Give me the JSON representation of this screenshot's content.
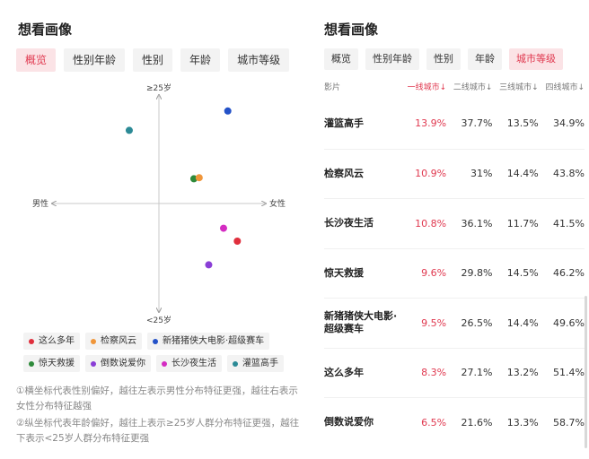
{
  "left": {
    "title": "想看画像",
    "tabs": [
      {
        "label": "概览",
        "active": true
      },
      {
        "label": "性别年龄",
        "active": false
      },
      {
        "label": "性别",
        "active": false
      },
      {
        "label": "年龄",
        "active": false
      },
      {
        "label": "城市等级",
        "active": false
      }
    ],
    "axes": {
      "top": "≥25岁",
      "bottom": "<25岁",
      "left": "男性",
      "right": "女性"
    },
    "legend": [
      {
        "name": "这么多年",
        "color": "#e02f3d"
      },
      {
        "name": "检察风云",
        "color": "#f0963a"
      },
      {
        "name": "新猪猪侠大电影·超级赛车",
        "color": "#2452c8"
      },
      {
        "name": "惊天救援",
        "color": "#2e8a3a"
      },
      {
        "name": "倒数说爱你",
        "color": "#8a3ed6"
      },
      {
        "name": "长沙夜生活",
        "color": "#d42cc2"
      },
      {
        "name": "灌篮高手",
        "color": "#2c8a96"
      }
    ],
    "notes": [
      "①横坐标代表性别偏好，越往左表示男性分布特征更强，越往右表示女性分布特征越强",
      "②纵坐标代表年龄偏好，越往上表示≥25岁人群分布特征更强，越往下表示<25岁人群分布特征更强"
    ]
  },
  "chart_data": {
    "type": "scatter",
    "title": "",
    "xlabel": "",
    "ylabel": "",
    "xlim": [
      -1,
      1
    ],
    "ylim": [
      -1,
      1
    ],
    "grid": false,
    "legend_position": "bottom",
    "points": [
      {
        "name": "灌篮高手",
        "x": -0.28,
        "y": 0.68,
        "color": "#2c8a96"
      },
      {
        "name": "新猪猪侠大电影·超级赛车",
        "x": 0.65,
        "y": 0.86,
        "color": "#2452c8"
      },
      {
        "name": "惊天救援",
        "x": 0.33,
        "y": 0.23,
        "color": "#2e8a3a"
      },
      {
        "name": "检察风云",
        "x": 0.38,
        "y": 0.24,
        "color": "#f0963a"
      },
      {
        "name": "长沙夜生活",
        "x": 0.61,
        "y": -0.23,
        "color": "#d42cc2"
      },
      {
        "name": "这么多年",
        "x": 0.74,
        "y": -0.35,
        "color": "#e02f3d"
      },
      {
        "name": "倒数说爱你",
        "x": 0.47,
        "y": -0.57,
        "color": "#8a3ed6"
      }
    ]
  },
  "right": {
    "title": "想看画像",
    "tabs": [
      {
        "label": "概览",
        "active": false
      },
      {
        "label": "性别年龄",
        "active": false
      },
      {
        "label": "性别",
        "active": false
      },
      {
        "label": "年龄",
        "active": false
      },
      {
        "label": "城市等级",
        "active": true
      }
    ],
    "table": {
      "headers": [
        "影片",
        "一线城市↓",
        "二线城市↓",
        "三线城市↓",
        "四线城市↓"
      ],
      "rows": [
        {
          "film": "灌篮高手",
          "c1": "13.9%",
          "c2": "37.7%",
          "c3": "13.5%",
          "c4": "34.9%"
        },
        {
          "film": "检察风云",
          "c1": "10.9%",
          "c2": "31%",
          "c3": "14.4%",
          "c4": "43.8%"
        },
        {
          "film": "长沙夜生活",
          "c1": "10.8%",
          "c2": "36.1%",
          "c3": "11.7%",
          "c4": "41.5%"
        },
        {
          "film": "惊天救援",
          "c1": "9.6%",
          "c2": "29.8%",
          "c3": "14.5%",
          "c4": "46.2%"
        },
        {
          "film": "新猪猪侠大电影·超级赛车",
          "c1": "9.5%",
          "c2": "26.5%",
          "c3": "14.4%",
          "c4": "49.6%"
        },
        {
          "film": "这么多年",
          "c1": "8.3%",
          "c2": "27.1%",
          "c3": "13.2%",
          "c4": "51.4%"
        },
        {
          "film": "倒数说爱你",
          "c1": "6.5%",
          "c2": "21.6%",
          "c3": "13.3%",
          "c4": "58.7%"
        }
      ]
    }
  }
}
